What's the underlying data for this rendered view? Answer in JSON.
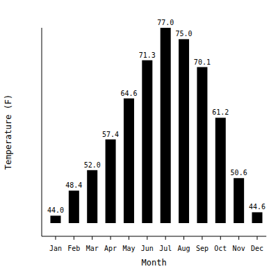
{
  "chart_data": {
    "type": "bar",
    "x_label": "Month",
    "y_label": "Temperature (F)",
    "categories": [
      "Jan",
      "Feb",
      "Mar",
      "Apr",
      "May",
      "Jun",
      "Jul",
      "Aug",
      "Sep",
      "Oct",
      "Nov",
      "Dec"
    ],
    "values": [
      44,
      48.4,
      52,
      57.4,
      64.6,
      71.3,
      77,
      75,
      70.1,
      61.2,
      50.6,
      44.6
    ],
    "value_labels": [
      "44.0",
      "48.4",
      "52.0",
      "57.4",
      "64.6",
      "71.3",
      "77.0",
      "75.0",
      "70.1",
      "61.2",
      "50.6",
      "44.6"
    ],
    "color": "#000000",
    "ylim": [
      42.7,
      77
    ],
    "data_labels": true,
    "grid": false,
    "tick_labels": "x"
  }
}
